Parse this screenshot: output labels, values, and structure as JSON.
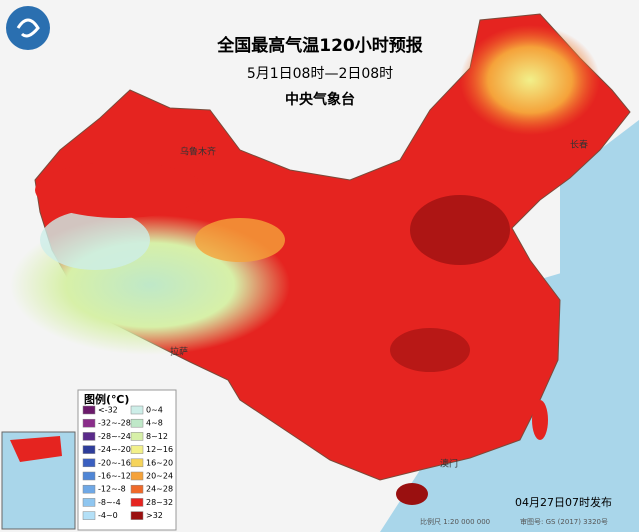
{
  "header": {
    "title": "全国最高气温120小时预报",
    "subtitle": "5月1日08时—2日08时",
    "agency": "中央气象台"
  },
  "legend": {
    "title": "图例(℃)",
    "items": [
      {
        "label": "<-32",
        "color": "#6b1a6b"
      },
      {
        "label": "-32~-28",
        "color": "#8a2d8a"
      },
      {
        "label": "-28~-24",
        "color": "#5a2a8a"
      },
      {
        "label": "-24~-20",
        "color": "#2e3d9a"
      },
      {
        "label": "-20~-16",
        "color": "#3a5fc0"
      },
      {
        "label": "-16~-12",
        "color": "#4f86d6"
      },
      {
        "label": "-12~-8",
        "color": "#6fa8e6"
      },
      {
        "label": "-8~-4",
        "color": "#8fc6f0"
      },
      {
        "label": "-4~0",
        "color": "#b4e0f7"
      },
      {
        "label": "0~4",
        "color": "#cdeee8"
      },
      {
        "label": "4~8",
        "color": "#bfe8c8"
      },
      {
        "label": "8~12",
        "color": "#d7f0a8"
      },
      {
        "label": "12~16",
        "color": "#f2f08a"
      },
      {
        "label": "16~20",
        "color": "#f6d45a"
      },
      {
        "label": "20~24",
        "color": "#f5a23a"
      },
      {
        "label": "24~28",
        "color": "#ef6a2a"
      },
      {
        "label": "28~32",
        "color": "#e52420"
      },
      {
        "label": ">32",
        "color": "#9a1010"
      }
    ]
  },
  "places": [
    "乌鲁木齐",
    "拉萨",
    "长春",
    "澳门"
  ],
  "footer": {
    "issued": "04月27日07时发布",
    "scale": "比例尺 1:20 000 000",
    "approval": "审图号: GS (2017) 3320号"
  }
}
